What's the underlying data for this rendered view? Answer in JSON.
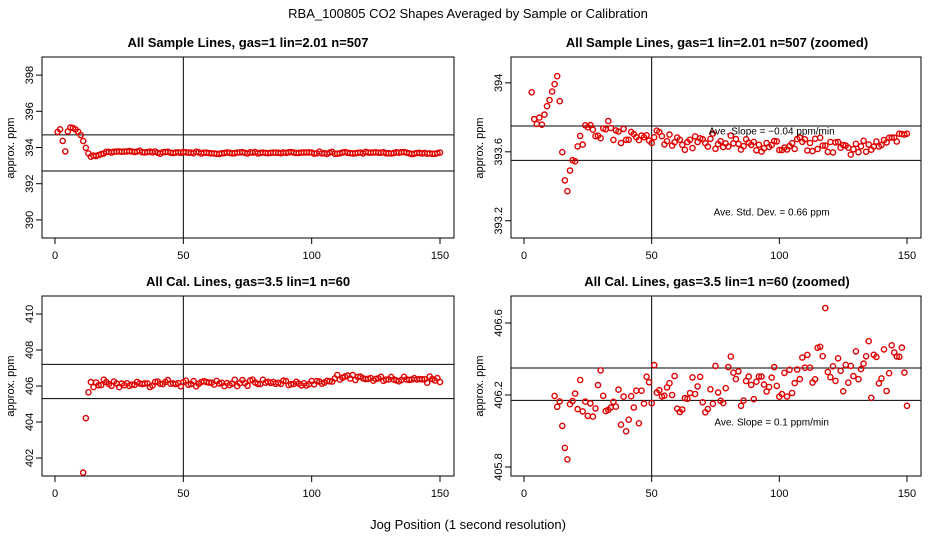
{
  "main_title": "RBA_100805  CO2 Shapes Averaged by Sample or Calibration",
  "xlabel_shared": "Jog Position (1 second resolution)",
  "colors": {
    "points": "#e00000",
    "lines": "#000000"
  },
  "chart_data": [
    {
      "type": "scatter",
      "title": "All Sample Lines, gas=1 lin=2.01 n=507",
      "ylabel": "approx. ppm",
      "xlim": [
        0,
        150
      ],
      "ylim": [
        389,
        399
      ],
      "xticks": [
        0,
        50,
        100,
        150
      ],
      "yticks": [
        390,
        392,
        394,
        396,
        398
      ],
      "vlines": [
        50
      ],
      "hlines": [
        394.7,
        392.7
      ],
      "annotations": [],
      "seed": 11,
      "profile": [
        [
          1,
          394.9
        ],
        [
          2,
          395.0
        ],
        [
          3,
          394.4
        ],
        [
          4,
          393.8
        ],
        [
          5,
          394.9
        ],
        [
          6,
          395.1
        ],
        [
          7,
          395.1
        ],
        [
          8,
          395.0
        ],
        [
          9,
          394.9
        ],
        [
          10,
          394.7
        ],
        [
          11,
          394.3
        ],
        [
          12,
          394.0
        ],
        [
          13,
          393.7
        ],
        [
          14,
          393.5
        ],
        [
          15,
          393.5
        ],
        [
          18,
          393.65
        ],
        [
          20,
          393.75
        ],
        [
          25,
          393.8
        ],
        [
          35,
          393.75
        ],
        [
          60,
          393.7
        ],
        [
          150,
          393.7
        ]
      ],
      "noise": 0.03
    },
    {
      "type": "scatter",
      "title": "All Sample Lines, gas=1 lin=2.01 n=507 (zoomed)",
      "ylabel": "approx. ppm",
      "xlim": [
        0,
        150
      ],
      "ylim": [
        393.1,
        394.15
      ],
      "xticks": [
        0,
        50,
        100,
        150
      ],
      "yticks": [
        393.2,
        393.6,
        394.0
      ],
      "vlines": [
        50
      ],
      "hlines": [
        393.75,
        393.55
      ],
      "annotations": [
        {
          "text": "Ave. Slope = −0.04  ppm/min",
          "x": 97,
          "y": 393.7
        },
        {
          "text": "Ave. Std. Dev. = 0.66  ppm",
          "x": 97,
          "y": 393.23
        }
      ],
      "seed": 22,
      "profile": [
        [
          3,
          393.95
        ],
        [
          5,
          393.72
        ],
        [
          10,
          393.88
        ],
        [
          13,
          394.05
        ],
        [
          14,
          393.85
        ],
        [
          15,
          393.6
        ],
        [
          16,
          393.42
        ],
        [
          17,
          393.38
        ],
        [
          18,
          393.48
        ],
        [
          19,
          393.55
        ],
        [
          22,
          393.65
        ],
        [
          25,
          393.75
        ],
        [
          30,
          393.72
        ],
        [
          40,
          393.7
        ],
        [
          60,
          393.67
        ],
        [
          80,
          393.67
        ],
        [
          95,
          393.62
        ],
        [
          100,
          393.64
        ],
        [
          125,
          393.64
        ],
        [
          135,
          393.62
        ],
        [
          150,
          393.7
        ]
      ],
      "noise": 0.025
    },
    {
      "type": "scatter",
      "title": "All Cal. Lines, gas=3.5 lin=1 n=60",
      "ylabel": "approx. ppm",
      "xlim": [
        0,
        150
      ],
      "ylim": [
        401,
        411
      ],
      "xticks": [
        0,
        50,
        100,
        150
      ],
      "yticks": [
        402,
        404,
        406,
        408,
        410
      ],
      "vlines": [
        50
      ],
      "hlines": [
        407.2,
        405.3
      ],
      "annotations": [],
      "seed": 33,
      "profile": [
        [
          11,
          401.3
        ],
        [
          12,
          404.2
        ],
        [
          13,
          405.6
        ],
        [
          14,
          406.2
        ],
        [
          15,
          405.9
        ],
        [
          16,
          406.0
        ],
        [
          18,
          406.1
        ],
        [
          20,
          406.2
        ],
        [
          40,
          406.15
        ],
        [
          100,
          406.2
        ],
        [
          115,
          406.5
        ],
        [
          120,
          406.4
        ],
        [
          150,
          406.3
        ]
      ],
      "noise": 0.1
    },
    {
      "type": "scatter",
      "title": "All Cal. Lines, gas=3.5 lin=1 n=60 (zoomed)",
      "ylabel": "approx. ppm",
      "xlim": [
        0,
        150
      ],
      "ylim": [
        405.75,
        406.75
      ],
      "xticks": [
        0,
        50,
        100,
        150
      ],
      "yticks": [
        405.8,
        406.2,
        406.6
      ],
      "vlines": [
        50
      ],
      "hlines": [
        406.35,
        406.17
      ],
      "annotations": [
        {
          "text": "Ave. Slope = 0.1  ppm/min",
          "x": 97,
          "y": 406.03
        }
      ],
      "seed": 44,
      "profile": [
        [
          12,
          406.2
        ],
        [
          17,
          405.85
        ],
        [
          18,
          406.05
        ],
        [
          20,
          406.25
        ],
        [
          40,
          406.1
        ],
        [
          50,
          406.18
        ],
        [
          70,
          406.22
        ],
        [
          100,
          406.27
        ],
        [
          116,
          406.4
        ],
        [
          118,
          406.62
        ],
        [
          120,
          406.35
        ],
        [
          150,
          406.3
        ]
      ],
      "noise": 0.08
    }
  ]
}
